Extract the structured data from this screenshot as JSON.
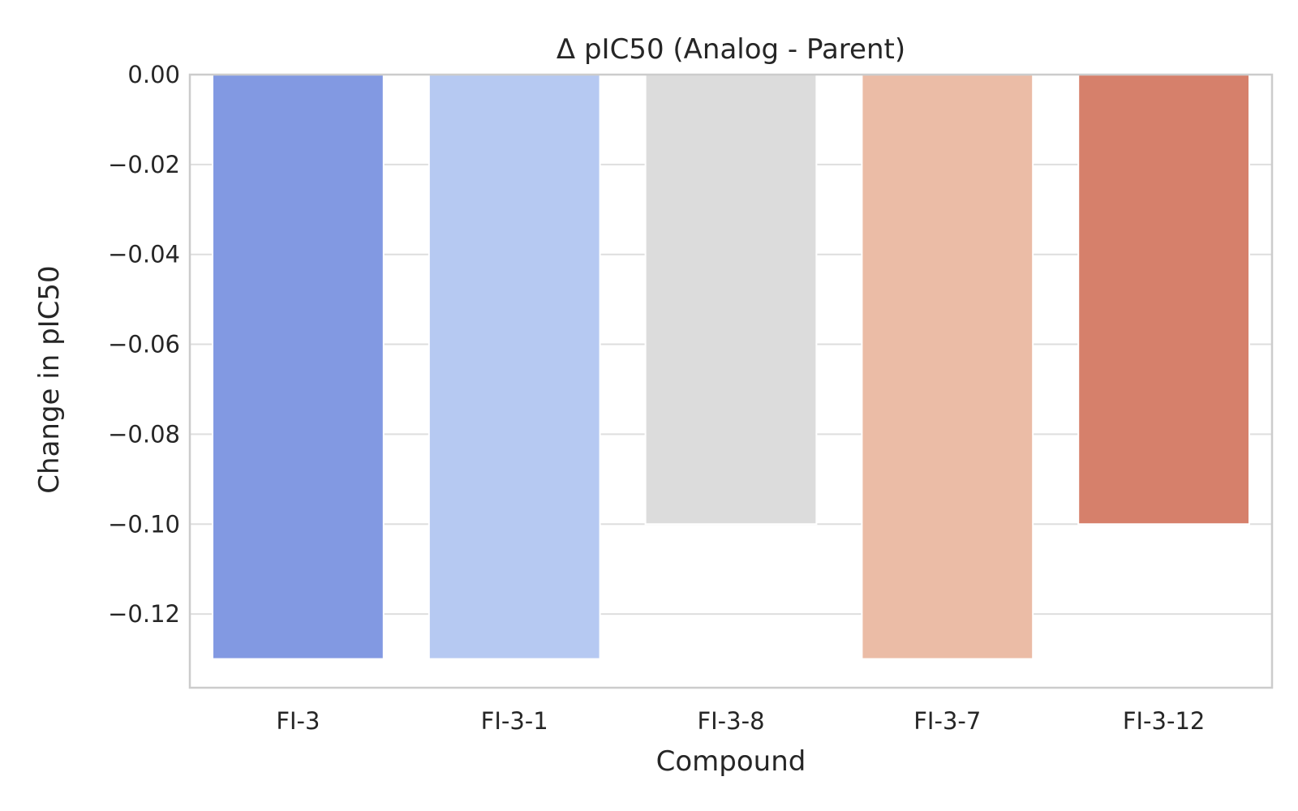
{
  "chart_data": {
    "type": "bar",
    "title": "Δ pIC50 (Analog - Parent)",
    "xlabel": "Compound",
    "ylabel": "Change in pIC50",
    "categories": [
      "FI-3",
      "FI-3-1",
      "FI-3-8",
      "FI-3-7",
      "FI-3-12"
    ],
    "values": [
      -0.13,
      -0.13,
      -0.1,
      -0.13,
      -0.1
    ],
    "colors": [
      "#8299e2",
      "#b6c9f2",
      "#dcdcdc",
      "#ebbca6",
      "#d6806b"
    ],
    "ylim": [
      -0.1364,
      0.0
    ],
    "yticks": [
      0.0,
      -0.02,
      -0.04,
      -0.06,
      -0.08,
      -0.1,
      -0.12
    ],
    "ytick_labels": [
      "0.00",
      "−0.02",
      "−0.04",
      "−0.06",
      "−0.08",
      "−0.10",
      "−0.12"
    ],
    "grid": "horizontal",
    "legend": "none"
  }
}
